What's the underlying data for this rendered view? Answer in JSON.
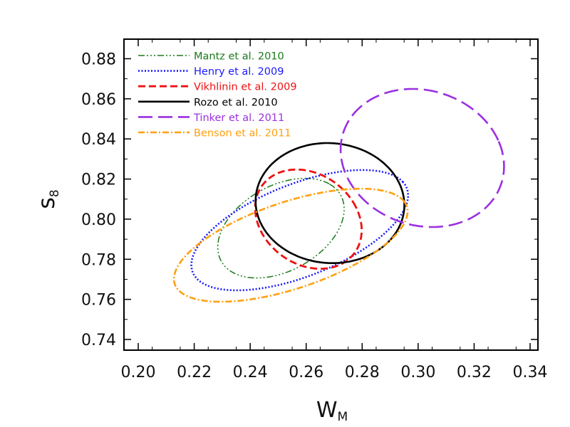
{
  "chart_data": {
    "type": "contour",
    "xlabel": "W",
    "xlabel_sub": "M",
    "ylabel": "s",
    "ylabel_sub": "8",
    "xlim": [
      0.2,
      0.34
    ],
    "ylim": [
      0.735,
      0.89
    ],
    "x_ticks": [
      "0.20",
      "0.22",
      "0.24",
      "0.26",
      "0.28",
      "0.30",
      "0.32",
      "0.34"
    ],
    "y_ticks": [
      "0.74",
      "0.76",
      "0.78",
      "0.80",
      "0.82",
      "0.84",
      "0.86",
      "0.88"
    ],
    "grid": false,
    "legend_position": "top-left",
    "series": [
      {
        "name": "Mantz et al. 2010",
        "color": "#1a7a1a",
        "dash": "dashdotdotdot",
        "ellipse": {
          "cx": 0.251,
          "cy": 0.7955,
          "rx": 0.028,
          "ry": 0.0185,
          "angle_deg": 52
        }
      },
      {
        "name": "Henry et al. 2009",
        "color": "#1a1aff",
        "dash": "dotted",
        "ellipse": {
          "cx": 0.2577,
          "cy": 0.7945,
          "rx": 0.044,
          "ry": 0.0215,
          "angle_deg": 33
        }
      },
      {
        "name": "Vikhlinin et al. 2009",
        "color": "#ee1111",
        "dash": "dashed",
        "ellipse": {
          "cx": 0.2608,
          "cy": 0.8,
          "rx": 0.018,
          "ry": 0.0255,
          "angle_deg": 20
        }
      },
      {
        "name": "Rozo et al. 2010",
        "color": "#000000",
        "dash": "solid",
        "ellipse": {
          "cx": 0.2685,
          "cy": 0.808,
          "rx": 0.0265,
          "ry": 0.03,
          "angle_deg": 8
        }
      },
      {
        "name": "Tinker et al. 2011",
        "color": "#9a30e0",
        "dash": "longdash",
        "ellipse": {
          "cx": 0.3015,
          "cy": 0.8305,
          "rx": 0.0285,
          "ry": 0.035,
          "angle_deg": 18
        }
      },
      {
        "name": "Benson et al. 2011",
        "color": "#ffa010",
        "dash": "dashdot",
        "ellipse": {
          "cx": 0.2545,
          "cy": 0.787,
          "rx": 0.046,
          "ry": 0.0205,
          "angle_deg": 28
        }
      }
    ]
  }
}
